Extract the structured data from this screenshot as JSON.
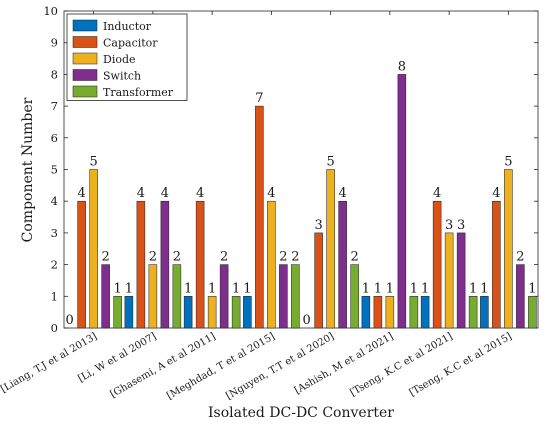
{
  "chart_data": {
    "type": "bar",
    "title": "",
    "xlabel": "Isolated DC-DC Converter",
    "ylabel": "Component Number",
    "ylim": [
      0,
      10
    ],
    "yticks": [
      0,
      1,
      2,
      3,
      4,
      5,
      6,
      7,
      8,
      9,
      10
    ],
    "grid": false,
    "legend_placement": "top-left",
    "categories": [
      "[Liang, T.J et al 2013]",
      "[Li, W et al 2007]",
      "[Ghasemi, A et al 2011]",
      "[Meghdad, T et al 2015]",
      "[Nguyen, T.T et al 2020]",
      "[Ashish, M et al 2021]",
      "[Tseng, K.C et al 2021]",
      "[Tseng, K.C et al 2015]"
    ],
    "series": [
      {
        "name": "Inductor",
        "color": "#0072BD",
        "values": [
          0,
          1,
          1,
          1,
          0,
          1,
          1,
          1
        ]
      },
      {
        "name": "Capacitor",
        "color": "#D95319",
        "values": [
          4,
          4,
          4,
          7,
          3,
          1,
          4,
          4
        ]
      },
      {
        "name": "Diode",
        "color": "#EDB120",
        "values": [
          5,
          2,
          1,
          4,
          5,
          1,
          3,
          5
        ]
      },
      {
        "name": "Switch",
        "color": "#7E2F8E",
        "values": [
          2,
          4,
          2,
          2,
          4,
          8,
          3,
          2
        ]
      },
      {
        "name": "Transformer",
        "color": "#77AC30",
        "values": [
          1,
          2,
          1,
          2,
          2,
          1,
          1,
          1
        ]
      }
    ]
  }
}
